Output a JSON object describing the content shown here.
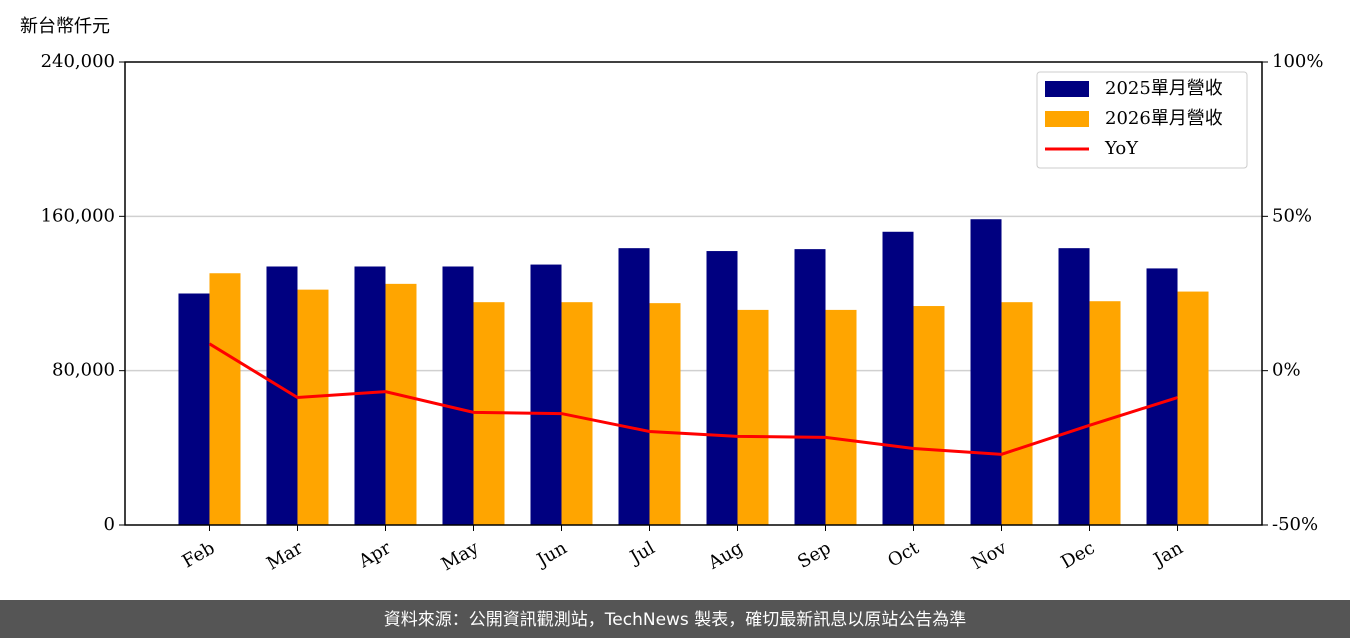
{
  "chart_data": {
    "type": "bar",
    "y_label": "新台幣仟元",
    "categories": [
      "Feb",
      "Mar",
      "Apr",
      "May",
      "Jun",
      "Jul",
      "Aug",
      "Sep",
      "Oct",
      "Nov",
      "Dec",
      "Jan"
    ],
    "series": [
      {
        "name": "2025單月營收",
        "color": "#000080",
        "type": "bar",
        "values": [
          120000,
          134000,
          134000,
          134000,
          135000,
          143500,
          142000,
          143000,
          152000,
          158500,
          143500,
          133000
        ]
      },
      {
        "name": "2026單月營收",
        "color": "#ffa500",
        "type": "bar",
        "values": [
          130500,
          122000,
          125000,
          115500,
          115500,
          115000,
          111500,
          111500,
          113500,
          115500,
          116000,
          121000
        ]
      },
      {
        "name": "YoY",
        "color": "#ff0000",
        "type": "line",
        "axis": "y2",
        "values": [
          8.7,
          -8.7,
          -6.8,
          -13.5,
          -13.9,
          -19.7,
          -21.3,
          -21.6,
          -25.2,
          -27.1,
          -17.7,
          -8.7
        ]
      }
    ],
    "ylim": [
      0,
      240000
    ],
    "yticks": [
      0,
      {
        "value": 80000,
        "label": "80,000"
      },
      {
        "value": 160000,
        "label": "160,000"
      },
      {
        "value": 240000,
        "label": "240,000"
      }
    ],
    "y2lim": [
      -50,
      100
    ],
    "y2ticks": [
      {
        "value": -50,
        "label": "-50%"
      },
      {
        "value": 0,
        "label": "0%"
      },
      {
        "value": 50,
        "label": "50%"
      },
      {
        "value": 100,
        "label": "100%"
      }
    ],
    "grid": true,
    "legend": "upper right",
    "footer": "資料來源：公開資訊觀測站，TechNews 製表，確切最新訊息以原站公告為準"
  }
}
